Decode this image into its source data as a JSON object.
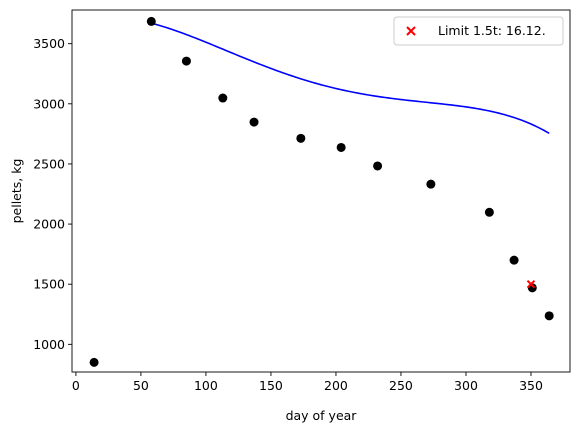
{
  "chart_data": {
    "type": "scatter",
    "title": "",
    "xlabel": "day of year",
    "ylabel": "pellets, kg",
    "xlim": [
      -3,
      380
    ],
    "ylim": [
      770,
      3780
    ],
    "xticks": [
      0,
      50,
      100,
      150,
      200,
      250,
      300,
      350
    ],
    "yticks": [
      1000,
      1500,
      2000,
      2500,
      3000,
      3500
    ],
    "grid": false,
    "legend_placement": "top-right",
    "series": [
      {
        "kind": "points",
        "color": "#000000",
        "marker": "circle",
        "x": [
          14,
          58,
          85,
          113,
          137,
          173,
          204,
          232,
          273,
          318,
          337,
          351,
          364
        ],
        "y": [
          850,
          3685,
          3355,
          3048,
          2848,
          2713,
          2637,
          2483,
          2332,
          2098,
          1700,
          1470,
          1237
        ]
      },
      {
        "kind": "fit-curve",
        "color": "#0000ff",
        "x_range": [
          58,
          364
        ],
        "coefficients_desc": [
          -4.5046e-07,
          0.00034643,
          -0.08366,
          3.7577,
          3671.5
        ]
      },
      {
        "kind": "marker",
        "name": "Limit 1.5t: 16.12.",
        "color": "#ff0000",
        "marker": "x",
        "x": [
          350
        ],
        "y": [
          1500
        ]
      }
    ],
    "legend": [
      {
        "label": "Limit 1.5t: 16.12.",
        "color": "#ff0000",
        "marker": "x"
      }
    ]
  }
}
